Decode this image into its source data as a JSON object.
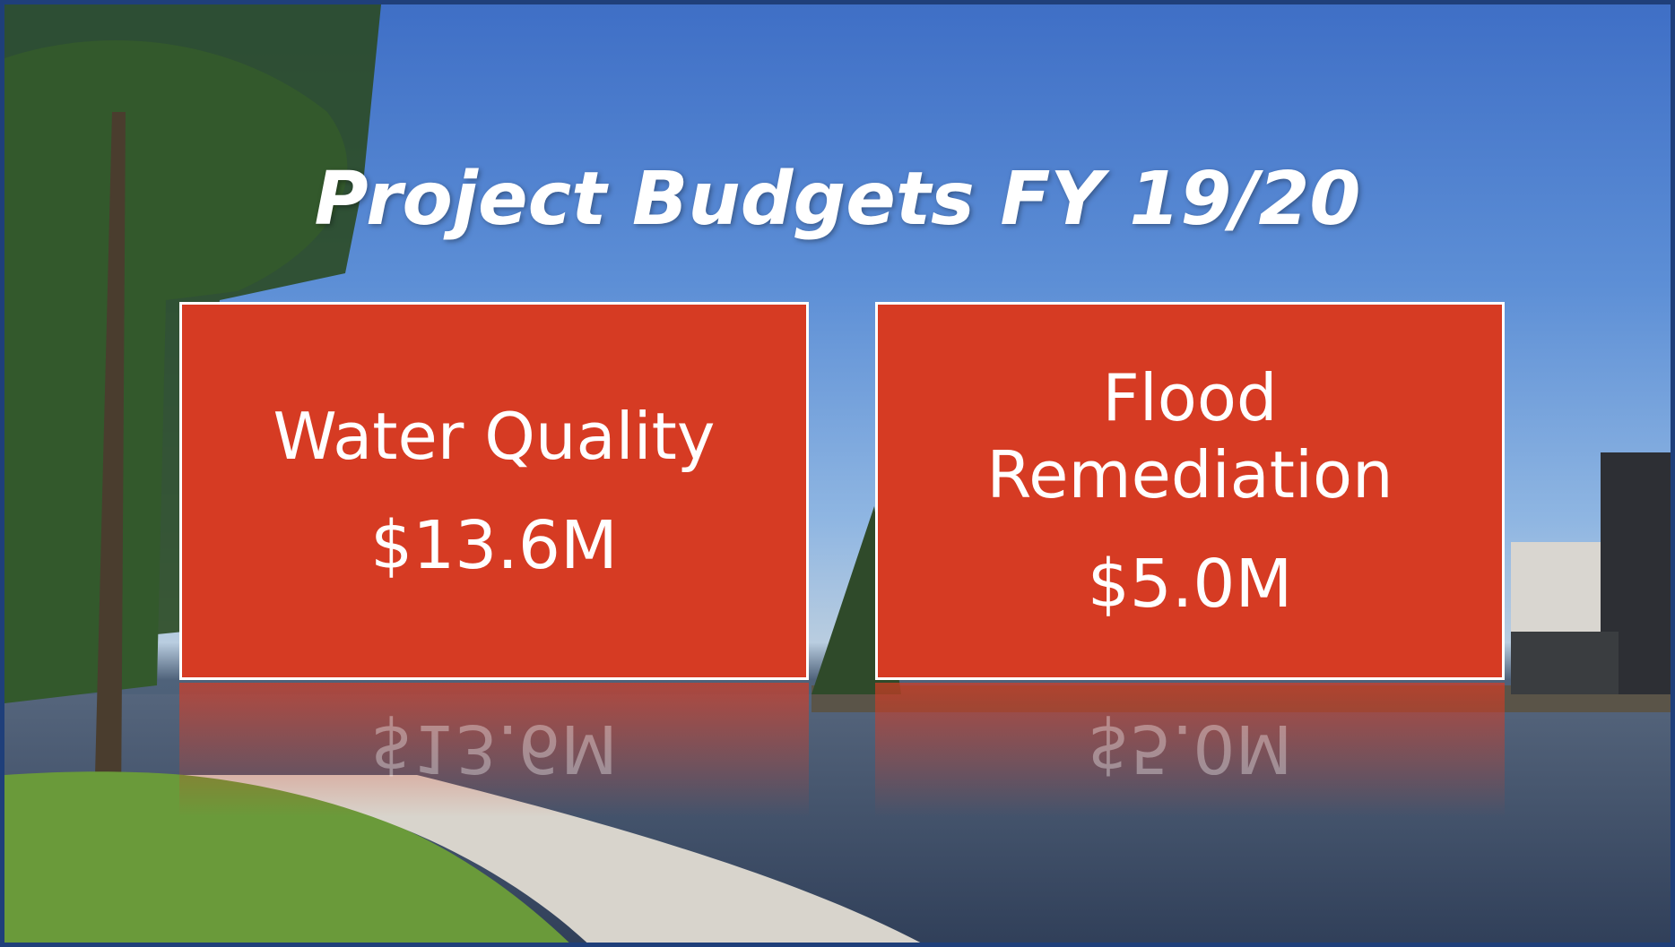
{
  "title": "Project Budgets FY 19/20",
  "cards": [
    {
      "label": "Water Quality",
      "amount": "$13.6M"
    },
    {
      "label": "Flood Remediation",
      "amount": "$5.0M"
    }
  ]
}
